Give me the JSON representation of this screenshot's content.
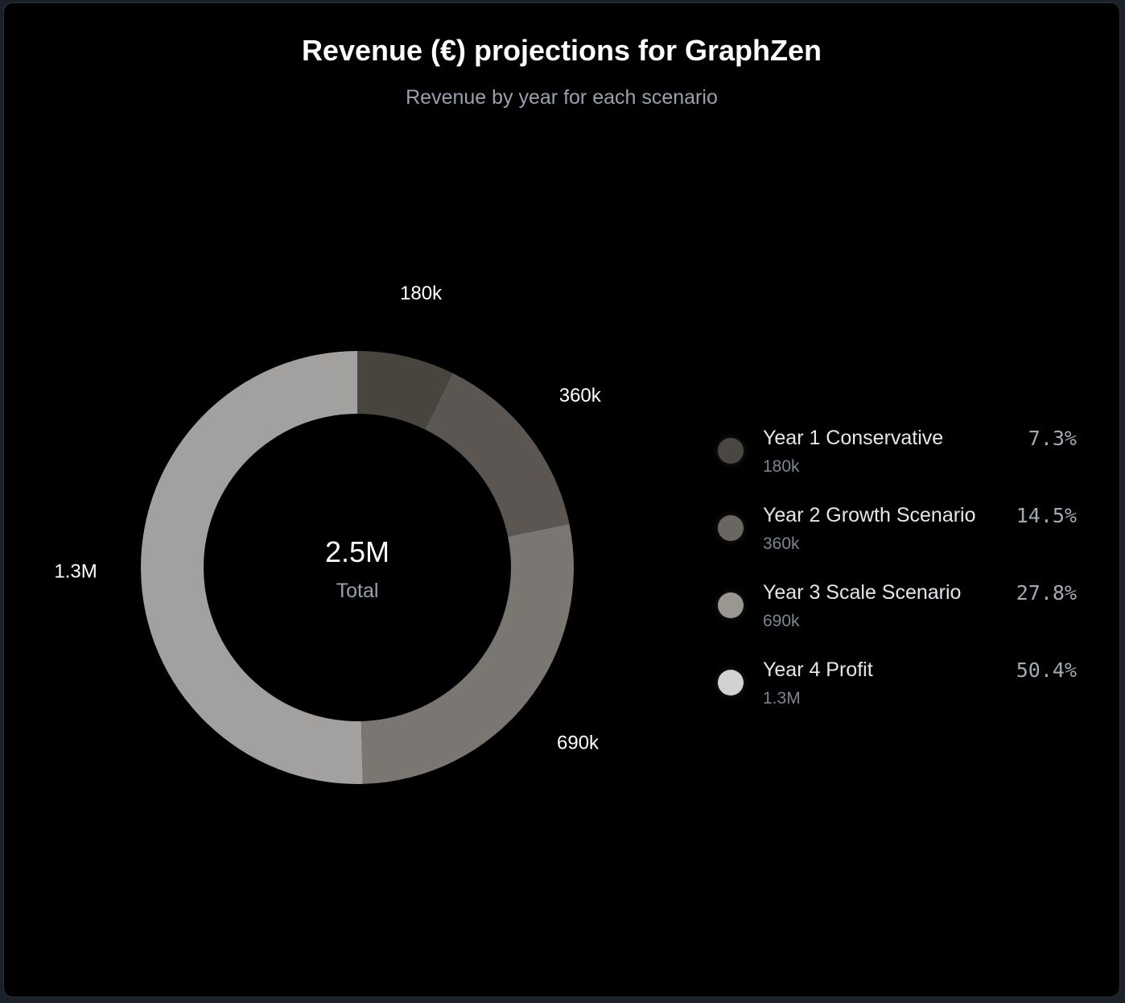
{
  "chart_data": {
    "type": "pie",
    "title": "Revenue (€) projections for GraphZen",
    "subtitle": "Revenue by year for each scenario",
    "donut": true,
    "center_value": "2.5M",
    "center_label": "Total",
    "categories": [
      "Year 1 Conservative",
      "Year 2 Growth Scenario",
      "Year 3 Scale Scenario",
      "Year 4 Profit"
    ],
    "values": [
      180000,
      360000,
      690000,
      1250000
    ],
    "value_labels": [
      "180k",
      "360k",
      "690k",
      "1.3M"
    ],
    "percent_labels": [
      "7.3%",
      "14.5%",
      "27.8%",
      "50.4%"
    ],
    "colors": [
      "#48453f",
      "#5b5651",
      "#7a7672",
      "#a3a19f"
    ],
    "legend_dot_colors": [
      "#4a4743",
      "#6a6661",
      "#9a9692",
      "#d2d1cf"
    ],
    "legend": "right"
  }
}
